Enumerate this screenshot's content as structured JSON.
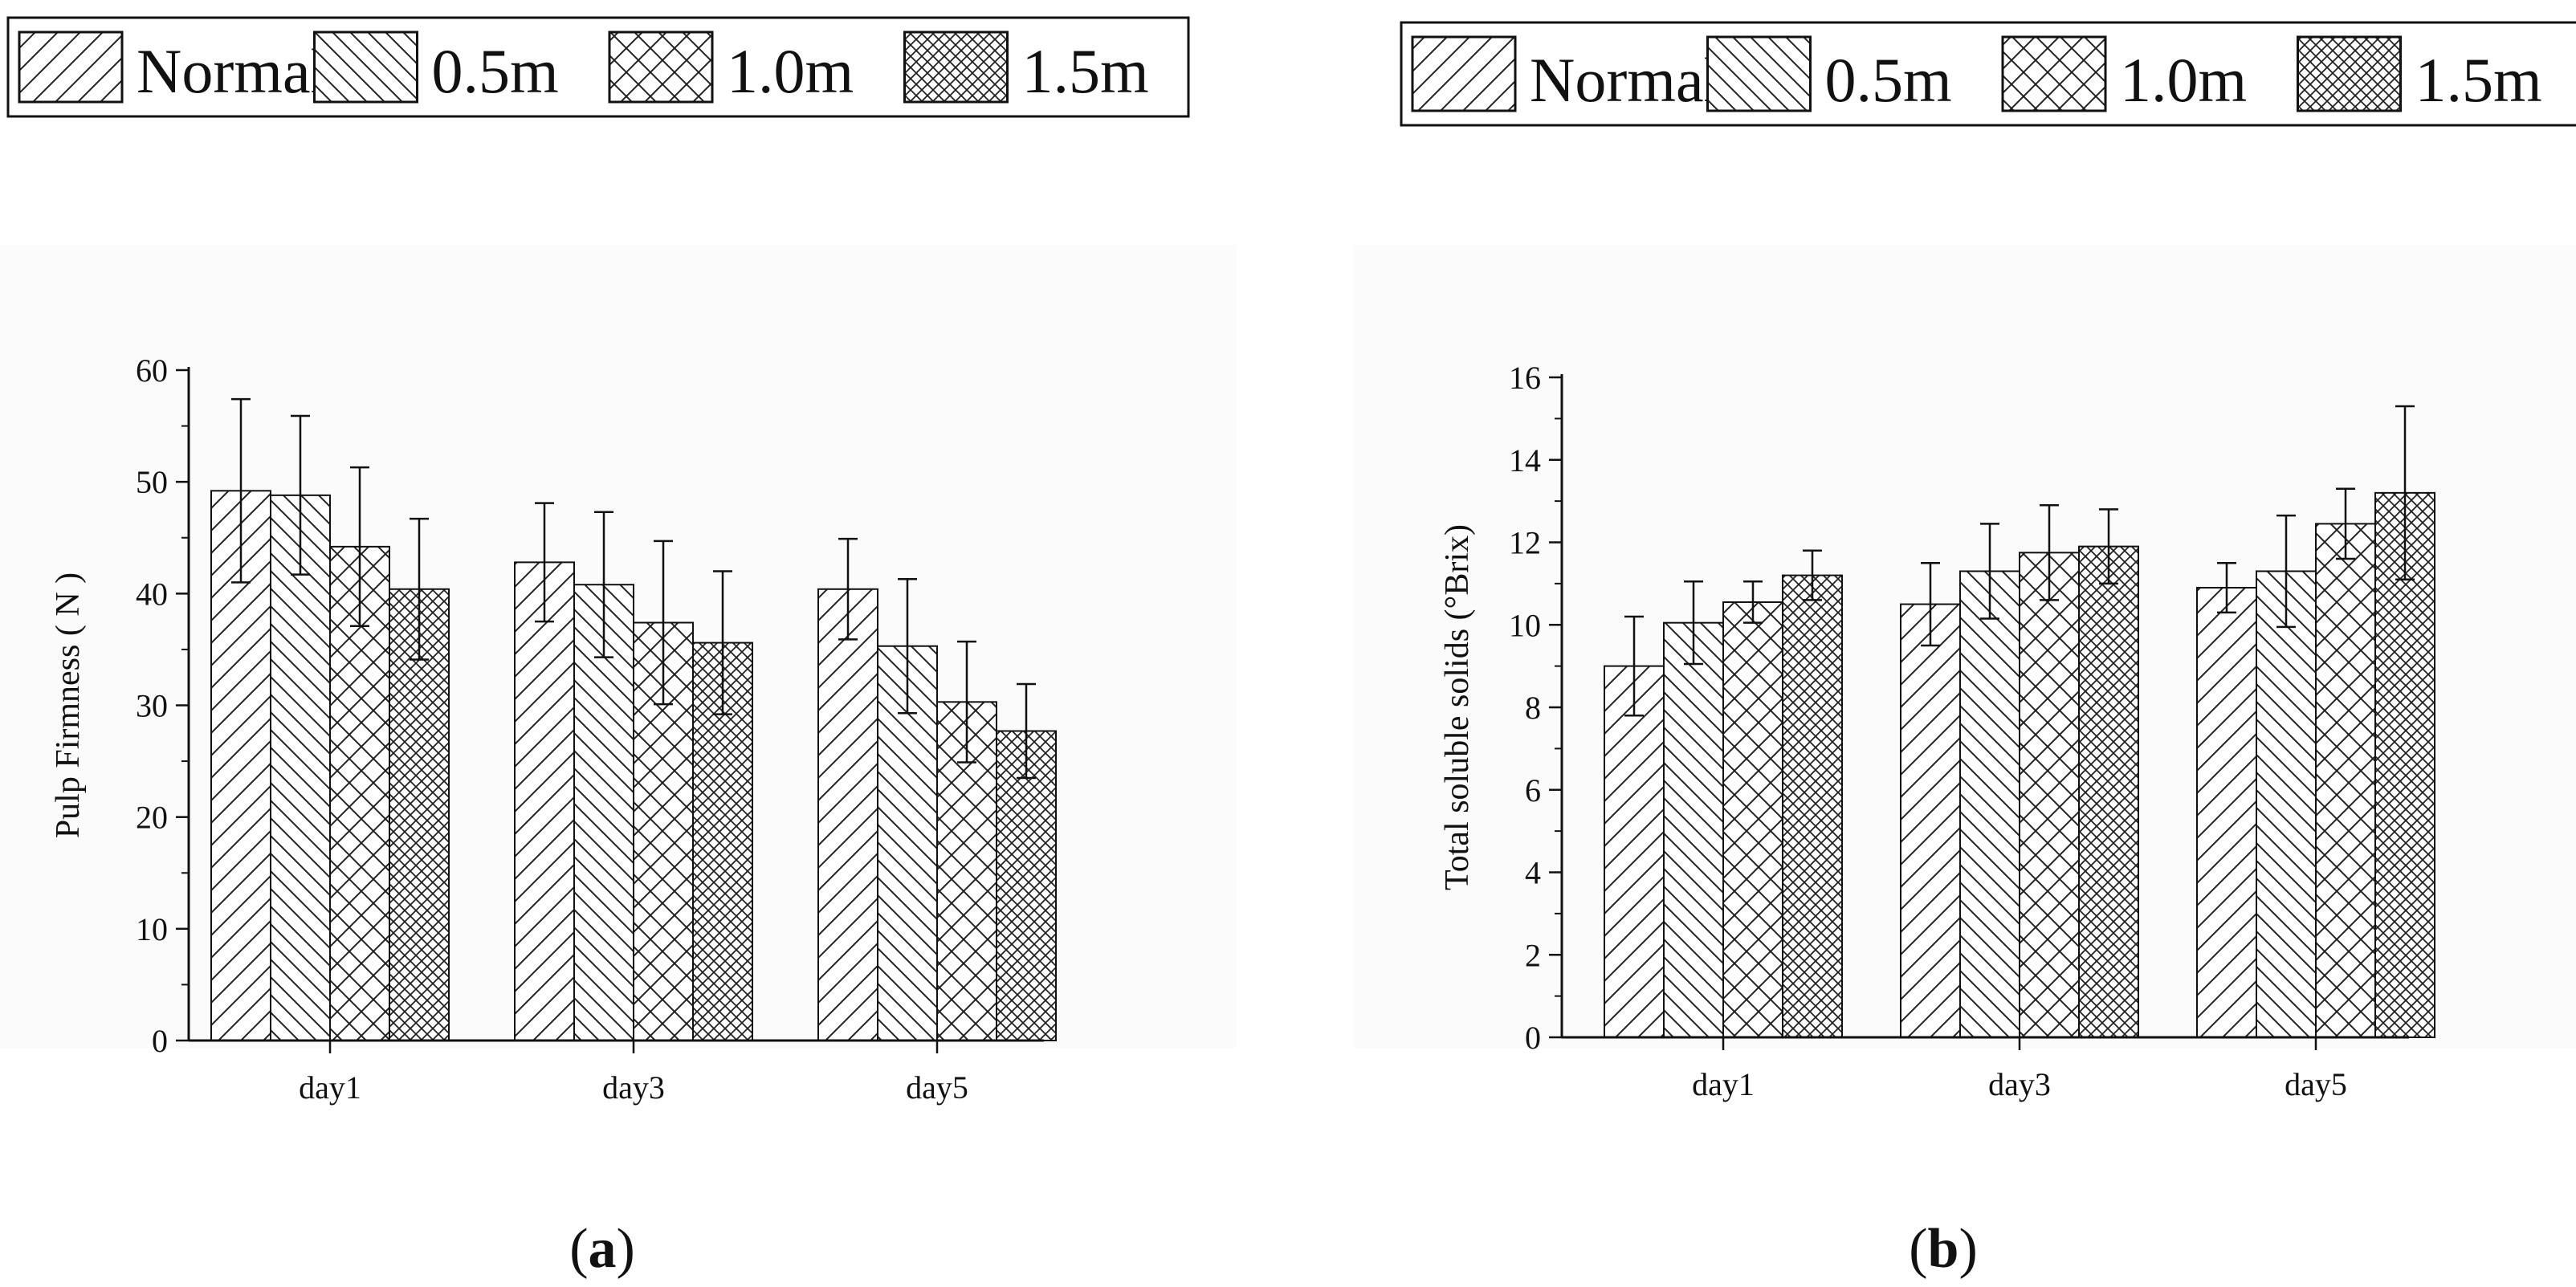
{
  "legend": {
    "items": [
      {
        "label": "Normal",
        "pattern": "diag-fwd"
      },
      {
        "label": "0.5m",
        "pattern": "diag-back"
      },
      {
        "label": "1.0m",
        "pattern": "cross"
      },
      {
        "label": "1.5m",
        "pattern": "cross-dense"
      }
    ]
  },
  "colors": {
    "line": "#111111",
    "background": "#ffffff",
    "panel_bg": "#fafafa"
  },
  "panels": [
    {
      "paren_open": "(",
      "letter": "a",
      "paren_close": ")"
    },
    {
      "paren_open": "(",
      "letter": "b",
      "paren_close": ")"
    }
  ],
  "chart_data": [
    {
      "type": "bar",
      "title": "",
      "xlabel": "",
      "ylabel": "Pulp Firmness ( N )",
      "ylim": [
        0,
        60
      ],
      "yticks": [
        0,
        10,
        20,
        30,
        40,
        50,
        60
      ],
      "categories": [
        "day1",
        "day3",
        "day5"
      ],
      "series": [
        {
          "name": "Normal",
          "values": [
            49.2,
            42.8,
            40.4
          ],
          "errors": [
            8.2,
            5.3,
            4.5
          ]
        },
        {
          "name": "0.5m",
          "values": [
            48.8,
            40.8,
            35.3
          ],
          "errors": [
            7.1,
            6.5,
            6.0
          ]
        },
        {
          "name": "1.0m",
          "values": [
            44.2,
            37.4,
            30.3
          ],
          "errors": [
            7.1,
            7.3,
            5.4
          ]
        },
        {
          "name": "1.5m",
          "values": [
            40.4,
            35.6,
            27.7
          ],
          "errors": [
            6.3,
            6.4,
            4.2
          ]
        }
      ],
      "legend": "top"
    },
    {
      "type": "bar",
      "title": "",
      "xlabel": "",
      "ylabel": "Total soluble solids (°Brix)",
      "ylim": [
        0,
        16
      ],
      "yticks": [
        0,
        2,
        4,
        6,
        8,
        10,
        12,
        14,
        16
      ],
      "categories": [
        "day1",
        "day3",
        "day5"
      ],
      "series": [
        {
          "name": "Normal",
          "values": [
            9.0,
            10.5,
            10.9
          ],
          "errors": [
            1.2,
            1.0,
            0.6
          ]
        },
        {
          "name": "0.5m",
          "values": [
            10.05,
            11.3,
            11.3
          ],
          "errors": [
            1.0,
            1.15,
            1.35
          ]
        },
        {
          "name": "1.0m",
          "values": [
            10.55,
            11.75,
            12.45
          ],
          "errors": [
            0.5,
            1.15,
            0.85
          ]
        },
        {
          "name": "1.5m",
          "values": [
            11.2,
            11.9,
            13.2
          ],
          "errors": [
            0.6,
            0.9,
            2.1
          ]
        }
      ],
      "legend": "top"
    }
  ]
}
